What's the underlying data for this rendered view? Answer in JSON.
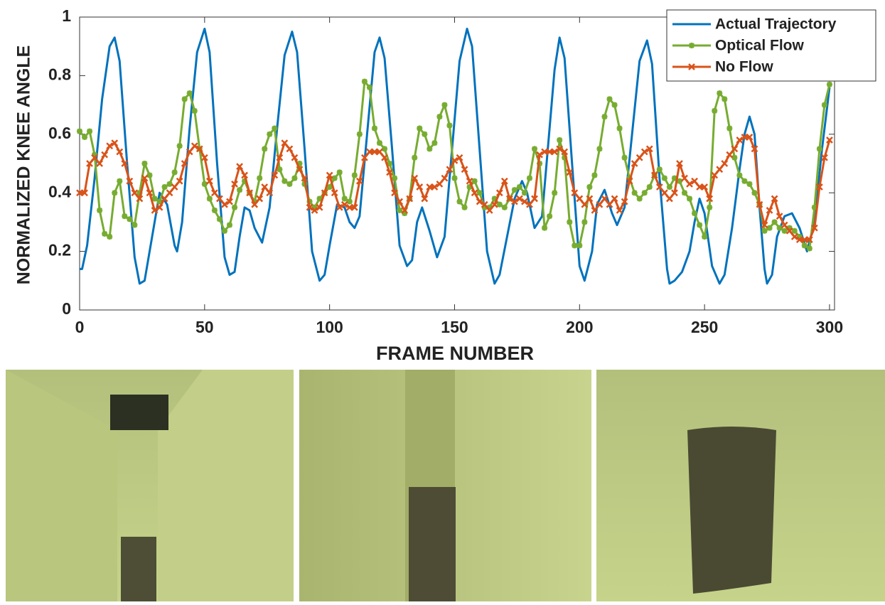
{
  "chart_data": {
    "type": "line",
    "ylabel": "NORMALIZED KNEE ANGLE",
    "xlabel": "FRAME NUMBER",
    "xlim": [
      0,
      302
    ],
    "ylim": [
      0,
      1
    ],
    "xticks": [
      0,
      50,
      100,
      150,
      200,
      250,
      300
    ],
    "yticks": [
      0,
      0.2,
      0.4,
      0.6,
      0.8,
      1
    ],
    "legend": "upper-right",
    "grid": false,
    "series": [
      {
        "name": "Actual Trajectory",
        "color": "#0072bd",
        "marker": "none",
        "x": [
          0,
          1,
          3,
          6,
          9,
          12,
          14,
          16,
          19,
          22,
          24,
          26,
          29,
          32,
          35,
          38,
          39,
          41,
          44,
          47,
          50,
          52,
          55,
          58,
          60,
          62,
          64,
          66,
          68,
          70,
          73,
          76,
          79,
          82,
          85,
          87,
          90,
          93,
          96,
          98,
          100,
          103,
          106,
          108,
          110,
          112,
          115,
          118,
          120,
          122,
          125,
          128,
          131,
          133,
          135,
          137,
          140,
          143,
          146,
          149,
          152,
          155,
          157,
          160,
          163,
          166,
          168,
          171,
          174,
          177,
          179,
          182,
          185,
          188,
          190,
          192,
          194,
          197,
          200,
          202,
          205,
          207,
          210,
          213,
          215,
          218,
          221,
          224,
          227,
          229,
          232,
          235,
          236,
          238,
          241,
          244,
          246,
          248,
          250,
          253,
          256,
          258,
          261,
          264,
          266,
          268,
          270,
          272,
          274,
          275,
          277,
          279,
          282,
          285,
          288,
          291,
          294,
          297,
          300
        ],
        "values": [
          0.14,
          0.14,
          0.22,
          0.45,
          0.72,
          0.9,
          0.93,
          0.85,
          0.5,
          0.18,
          0.09,
          0.1,
          0.25,
          0.4,
          0.36,
          0.22,
          0.2,
          0.3,
          0.62,
          0.88,
          0.96,
          0.88,
          0.5,
          0.18,
          0.12,
          0.13,
          0.25,
          0.35,
          0.34,
          0.28,
          0.23,
          0.35,
          0.62,
          0.87,
          0.95,
          0.88,
          0.55,
          0.2,
          0.1,
          0.12,
          0.22,
          0.36,
          0.35,
          0.3,
          0.28,
          0.32,
          0.6,
          0.88,
          0.93,
          0.86,
          0.55,
          0.22,
          0.15,
          0.17,
          0.3,
          0.35,
          0.27,
          0.18,
          0.25,
          0.55,
          0.85,
          0.96,
          0.9,
          0.55,
          0.2,
          0.09,
          0.12,
          0.25,
          0.38,
          0.44,
          0.4,
          0.28,
          0.32,
          0.62,
          0.82,
          0.93,
          0.86,
          0.5,
          0.15,
          0.1,
          0.2,
          0.36,
          0.41,
          0.33,
          0.29,
          0.35,
          0.6,
          0.85,
          0.92,
          0.84,
          0.45,
          0.14,
          0.09,
          0.1,
          0.13,
          0.2,
          0.3,
          0.38,
          0.33,
          0.15,
          0.09,
          0.12,
          0.28,
          0.48,
          0.6,
          0.66,
          0.6,
          0.35,
          0.14,
          0.09,
          0.12,
          0.25,
          0.32,
          0.33,
          0.28,
          0.2,
          0.3,
          0.55,
          0.76
        ]
      },
      {
        "name": "Optical Flow",
        "color": "#77ac30",
        "marker": "star",
        "x": [
          0,
          2,
          4,
          6,
          8,
          10,
          12,
          14,
          16,
          18,
          20,
          22,
          24,
          26,
          28,
          30,
          32,
          34,
          36,
          38,
          40,
          42,
          44,
          46,
          48,
          50,
          52,
          54,
          56,
          58,
          60,
          62,
          64,
          66,
          68,
          70,
          72,
          74,
          76,
          78,
          80,
          82,
          84,
          86,
          88,
          90,
          92,
          94,
          96,
          98,
          100,
          102,
          104,
          106,
          108,
          110,
          112,
          114,
          116,
          118,
          120,
          122,
          124,
          126,
          128,
          130,
          132,
          134,
          136,
          138,
          140,
          142,
          144,
          146,
          148,
          150,
          152,
          154,
          156,
          158,
          160,
          162,
          164,
          166,
          168,
          170,
          172,
          174,
          176,
          178,
          180,
          182,
          184,
          186,
          188,
          190,
          192,
          194,
          196,
          198,
          200,
          202,
          204,
          206,
          208,
          210,
          212,
          214,
          216,
          218,
          220,
          222,
          224,
          226,
          228,
          230,
          232,
          234,
          236,
          238,
          240,
          242,
          244,
          246,
          248,
          250,
          252,
          254,
          256,
          258,
          260,
          262,
          264,
          266,
          268,
          270,
          272,
          274,
          276,
          278,
          280,
          282,
          284,
          286,
          288,
          290,
          292,
          294,
          296,
          298,
          300
        ],
        "values": [
          0.61,
          0.59,
          0.61,
          0.53,
          0.34,
          0.26,
          0.25,
          0.4,
          0.44,
          0.32,
          0.31,
          0.29,
          0.4,
          0.5,
          0.46,
          0.38,
          0.37,
          0.42,
          0.43,
          0.47,
          0.56,
          0.72,
          0.74,
          0.68,
          0.55,
          0.43,
          0.38,
          0.34,
          0.31,
          0.27,
          0.29,
          0.35,
          0.41,
          0.44,
          0.4,
          0.37,
          0.45,
          0.55,
          0.6,
          0.62,
          0.48,
          0.44,
          0.43,
          0.45,
          0.5,
          0.43,
          0.37,
          0.35,
          0.38,
          0.4,
          0.42,
          0.45,
          0.47,
          0.38,
          0.37,
          0.46,
          0.6,
          0.78,
          0.76,
          0.62,
          0.57,
          0.55,
          0.5,
          0.45,
          0.34,
          0.33,
          0.38,
          0.52,
          0.62,
          0.6,
          0.55,
          0.57,
          0.66,
          0.7,
          0.63,
          0.45,
          0.37,
          0.35,
          0.42,
          0.44,
          0.4,
          0.35,
          0.35,
          0.38,
          0.36,
          0.35,
          0.38,
          0.41,
          0.42,
          0.4,
          0.45,
          0.55,
          0.5,
          0.28,
          0.32,
          0.4,
          0.58,
          0.52,
          0.3,
          0.22,
          0.22,
          0.3,
          0.42,
          0.46,
          0.55,
          0.66,
          0.72,
          0.7,
          0.62,
          0.52,
          0.45,
          0.4,
          0.38,
          0.4,
          0.42,
          0.46,
          0.48,
          0.45,
          0.42,
          0.45,
          0.44,
          0.4,
          0.38,
          0.33,
          0.29,
          0.25,
          0.35,
          0.68,
          0.74,
          0.72,
          0.62,
          0.52,
          0.46,
          0.44,
          0.43,
          0.4,
          0.36,
          0.27,
          0.28,
          0.3,
          0.28,
          0.27,
          0.28,
          0.27,
          0.25,
          0.22,
          0.21,
          0.35,
          0.55,
          0.7,
          0.77
        ]
      },
      {
        "name": "No Flow",
        "color": "#d95319",
        "marker": "x",
        "x": [
          0,
          2,
          4,
          6,
          8,
          10,
          12,
          14,
          16,
          18,
          20,
          22,
          24,
          26,
          28,
          30,
          32,
          34,
          36,
          38,
          40,
          42,
          44,
          46,
          48,
          50,
          52,
          54,
          56,
          58,
          60,
          62,
          64,
          66,
          68,
          70,
          72,
          74,
          76,
          78,
          80,
          82,
          84,
          86,
          88,
          90,
          92,
          94,
          96,
          98,
          100,
          102,
          104,
          106,
          108,
          110,
          112,
          114,
          116,
          118,
          120,
          122,
          124,
          126,
          128,
          130,
          132,
          134,
          136,
          138,
          140,
          142,
          144,
          146,
          148,
          150,
          152,
          154,
          156,
          158,
          160,
          162,
          164,
          166,
          168,
          170,
          172,
          174,
          176,
          178,
          180,
          182,
          184,
          186,
          188,
          190,
          192,
          194,
          196,
          198,
          200,
          202,
          204,
          206,
          208,
          210,
          212,
          214,
          216,
          218,
          220,
          222,
          224,
          226,
          228,
          230,
          232,
          234,
          236,
          238,
          240,
          242,
          244,
          246,
          248,
          250,
          252,
          254,
          256,
          258,
          260,
          262,
          264,
          266,
          268,
          270,
          272,
          274,
          276,
          278,
          280,
          282,
          284,
          286,
          288,
          290,
          292,
          294,
          296,
          298,
          300
        ],
        "values": [
          0.4,
          0.4,
          0.5,
          0.52,
          0.5,
          0.53,
          0.56,
          0.57,
          0.54,
          0.5,
          0.44,
          0.4,
          0.38,
          0.45,
          0.4,
          0.34,
          0.35,
          0.38,
          0.4,
          0.42,
          0.44,
          0.5,
          0.54,
          0.56,
          0.55,
          0.52,
          0.44,
          0.4,
          0.38,
          0.36,
          0.37,
          0.43,
          0.49,
          0.46,
          0.4,
          0.36,
          0.38,
          0.42,
          0.4,
          0.46,
          0.52,
          0.57,
          0.55,
          0.52,
          0.48,
          0.45,
          0.35,
          0.34,
          0.35,
          0.4,
          0.46,
          0.4,
          0.35,
          0.36,
          0.35,
          0.35,
          0.44,
          0.52,
          0.54,
          0.54,
          0.54,
          0.52,
          0.47,
          0.4,
          0.37,
          0.34,
          0.38,
          0.45,
          0.42,
          0.38,
          0.42,
          0.42,
          0.43,
          0.45,
          0.48,
          0.51,
          0.52,
          0.48,
          0.44,
          0.4,
          0.37,
          0.36,
          0.34,
          0.36,
          0.4,
          0.44,
          0.38,
          0.37,
          0.38,
          0.37,
          0.36,
          0.38,
          0.53,
          0.54,
          0.54,
          0.54,
          0.55,
          0.54,
          0.47,
          0.4,
          0.38,
          0.36,
          0.38,
          0.34,
          0.36,
          0.38,
          0.36,
          0.38,
          0.34,
          0.37,
          0.44,
          0.5,
          0.52,
          0.54,
          0.55,
          0.46,
          0.42,
          0.4,
          0.38,
          0.4,
          0.5,
          0.45,
          0.43,
          0.44,
          0.42,
          0.42,
          0.38,
          0.46,
          0.48,
          0.5,
          0.53,
          0.55,
          0.58,
          0.59,
          0.59,
          0.55,
          0.36,
          0.29,
          0.34,
          0.38,
          0.32,
          0.29,
          0.27,
          0.25,
          0.24,
          0.24,
          0.24,
          0.28,
          0.42,
          0.52,
          0.58
        ]
      }
    ]
  }
}
